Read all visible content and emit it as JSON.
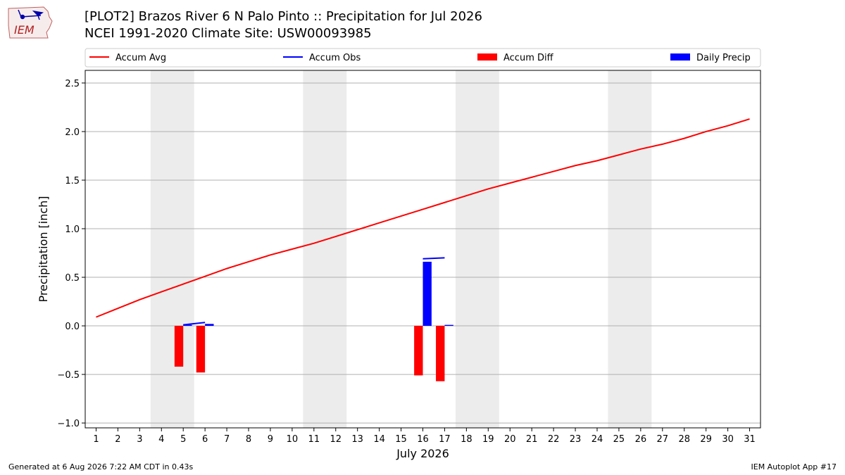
{
  "title_line1": "[PLOT2] Brazos River 6 N Palo Pinto :: Precipitation for Jul 2026",
  "title_line2": "NCEI 1991-2020 Climate Site: USW00093985",
  "logo_text": "IEM",
  "footer_left": "Generated at 6 Aug 2026 7:22 AM CDT in 0.43s",
  "footer_right": "IEM Autoplot App #17",
  "chart_data": {
    "type": "bar",
    "xlabel": "July 2026",
    "ylabel": "Precipitation [inch]",
    "xlim": [
      0.5,
      31.5
    ],
    "ylim": [
      -1.05,
      2.63
    ],
    "yticks": [
      -1.0,
      -0.5,
      0.0,
      0.5,
      1.0,
      1.5,
      2.0,
      2.5
    ],
    "ytick_labels": [
      "−1.0",
      "−0.5",
      "0.0",
      "0.5",
      "1.0",
      "1.5",
      "2.0",
      "2.5"
    ],
    "x_days": [
      1,
      2,
      3,
      4,
      5,
      6,
      7,
      8,
      9,
      10,
      11,
      12,
      13,
      14,
      15,
      16,
      17,
      18,
      19,
      20,
      21,
      22,
      23,
      24,
      25,
      26,
      27,
      28,
      29,
      30,
      31
    ],
    "x_tick_labels": [
      "1",
      "2",
      "3",
      "4",
      "5",
      "6",
      "7",
      "8",
      "9",
      "10",
      "11",
      "12",
      "13",
      "14",
      "15",
      "16",
      "17",
      "18",
      "19",
      "20",
      "21",
      "22",
      "23",
      "24",
      "25",
      "26",
      "27",
      "28",
      "29",
      "30",
      "31"
    ],
    "grid": "horizontal",
    "legend_position": "top",
    "weekend_bands": [
      [
        4,
        5
      ],
      [
        11,
        12
      ],
      [
        18,
        19
      ],
      [
        25,
        26
      ]
    ],
    "weekend_color": "#ececec",
    "legend": [
      {
        "label": "Accum Avg",
        "kind": "line",
        "color": "#ff0000"
      },
      {
        "label": "Accum Obs",
        "kind": "line",
        "color": "#0000ff"
      },
      {
        "label": "Accum Diff",
        "kind": "bar",
        "color": "#ff0000"
      },
      {
        "label": "Daily Precip",
        "kind": "bar",
        "color": "#0000ff"
      }
    ],
    "accum_avg": [
      0.09,
      0.18,
      0.27,
      0.35,
      0.43,
      0.51,
      0.59,
      0.66,
      0.73,
      0.79,
      0.85,
      0.92,
      0.99,
      1.06,
      1.13,
      1.2,
      1.27,
      1.34,
      1.41,
      1.47,
      1.53,
      1.59,
      1.65,
      1.7,
      1.76,
      1.82,
      1.87,
      1.93,
      2.0,
      2.06,
      2.13
    ],
    "accum_obs_segments": [
      {
        "days": [
          5,
          6
        ],
        "values": [
          0.01,
          0.035
        ]
      },
      {
        "days": [
          16,
          17
        ],
        "values": [
          0.69,
          0.7
        ]
      }
    ],
    "accum_diff": [
      {
        "day": 5,
        "value": -0.42
      },
      {
        "day": 6,
        "value": -0.48
      },
      {
        "day": 16,
        "value": -0.51
      },
      {
        "day": 17,
        "value": -0.57
      }
    ],
    "daily_precip": [
      {
        "day": 5,
        "value": 0.01
      },
      {
        "day": 6,
        "value": 0.02
      },
      {
        "day": 16,
        "value": 0.66
      },
      {
        "day": 17,
        "value": 0.01
      }
    ]
  }
}
